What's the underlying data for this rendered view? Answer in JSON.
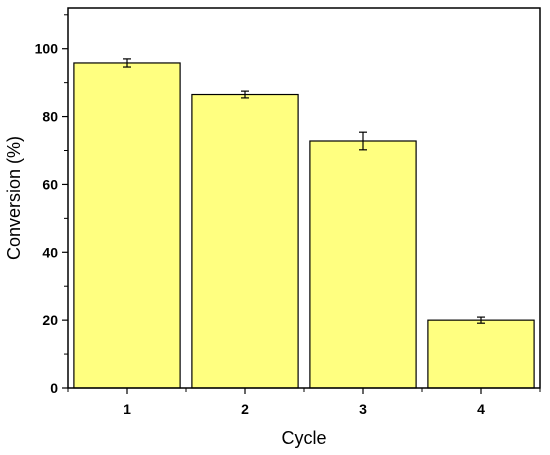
{
  "chart_data": {
    "type": "bar",
    "title": "",
    "xlabel": "Cycle",
    "ylabel": "Conversion (%)",
    "categories": [
      "1",
      "2",
      "3",
      "4"
    ],
    "values": [
      95.8,
      86.5,
      72.8,
      20.0
    ],
    "errors": [
      1.2,
      1.0,
      2.6,
      0.9
    ],
    "ylim": [
      0,
      112
    ],
    "yticks": [
      0,
      20,
      40,
      60,
      80,
      100
    ],
    "bar_color": "#ffff80",
    "edge_color": "#000000",
    "grid": false,
    "legend": false
  }
}
